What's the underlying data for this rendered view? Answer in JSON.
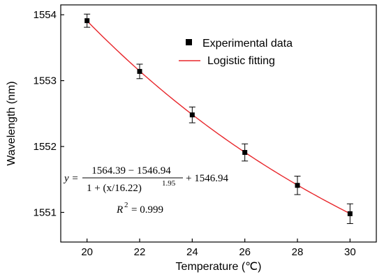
{
  "chart_data": {
    "type": "scatter",
    "xlabel": "Temperature (℃)",
    "ylabel": "Wavelength (nm)",
    "xlim": [
      19,
      31
    ],
    "ylim": [
      1550.55,
      1554.15
    ],
    "xticks": [
      20,
      22,
      24,
      26,
      28,
      30
    ],
    "yticks": [
      1551,
      1552,
      1553,
      1554
    ],
    "legend_position": "top-right",
    "grid": false,
    "series": [
      {
        "name": "Experimental data",
        "kind": "scatter",
        "color": "#000000",
        "x": [
          20,
          22,
          24,
          26,
          28,
          30
        ],
        "y": [
          1553.91,
          1553.14,
          1552.48,
          1551.91,
          1551.41,
          1550.98
        ],
        "error": [
          0.1,
          0.11,
          0.12,
          0.13,
          0.14,
          0.15
        ]
      },
      {
        "name": "Logistic fitting",
        "kind": "line",
        "color": "#e8262b",
        "fit": {
          "A1": 1564.39,
          "A2": 1546.94,
          "x0": 16.22,
          "p": 1.95
        }
      }
    ],
    "annotations": {
      "equation_lhs": "y =",
      "equation_numerator": "1564.39 − 1546.94",
      "equation_denominator": "1 + (x/16.22)",
      "equation_exponent": "1.95",
      "equation_tail": "+ 1546.94",
      "r2_label": "R",
      "r2_exp": "2",
      "r2_value": "= 0.999"
    }
  }
}
